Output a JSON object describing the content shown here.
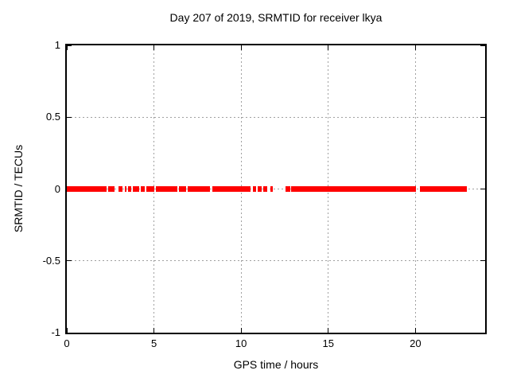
{
  "figure": {
    "title": "Day 207 of 2019, SRMTID for receiver lkya"
  },
  "chart_data": {
    "type": "scatter",
    "title": "Day 207 of 2019, SRMTID for receiver lkya",
    "xlabel": "GPS time / hours",
    "ylabel": "SRMTID / TECUs",
    "xlim": [
      0,
      24
    ],
    "ylim": [
      -1,
      1
    ],
    "xticks": [
      {
        "value": 0,
        "label": "0"
      },
      {
        "value": 5,
        "label": "5"
      },
      {
        "value": 10,
        "label": "10"
      },
      {
        "value": 15,
        "label": "15"
      },
      {
        "value": 20,
        "label": "20"
      }
    ],
    "yticks": [
      {
        "value": 1,
        "label": "1"
      },
      {
        "value": 0.5,
        "label": "0.5"
      },
      {
        "value": 0,
        "label": "0"
      },
      {
        "value": -0.5,
        "label": "-0.5"
      },
      {
        "value": -1,
        "label": "-1"
      }
    ],
    "grid": true,
    "legend_position": "none",
    "series": [
      {
        "name": "SRMTID",
        "color": "#ff0000",
        "marker": "plus-band",
        "y_value": 0,
        "x_segments_hours": [
          [
            0.0,
            2.27
          ],
          [
            2.37,
            2.75
          ],
          [
            2.97,
            3.19
          ],
          [
            3.33,
            3.43
          ],
          [
            3.52,
            3.71
          ],
          [
            3.8,
            4.13
          ],
          [
            4.26,
            4.45
          ],
          [
            4.56,
            5.02
          ],
          [
            5.1,
            6.32
          ],
          [
            6.45,
            6.83
          ],
          [
            6.95,
            8.22
          ],
          [
            8.35,
            10.53
          ],
          [
            10.66,
            10.88
          ],
          [
            10.96,
            11.2
          ],
          [
            11.28,
            11.5
          ],
          [
            11.68,
            11.82
          ],
          [
            12.55,
            12.82
          ],
          [
            12.87,
            20.02
          ],
          [
            20.28,
            22.97
          ]
        ]
      }
    ]
  },
  "colors": {
    "background": "#ffffff",
    "border": "#000000",
    "grid": "#a0a0a0",
    "text": "#000000",
    "data": "#ff0000"
  }
}
